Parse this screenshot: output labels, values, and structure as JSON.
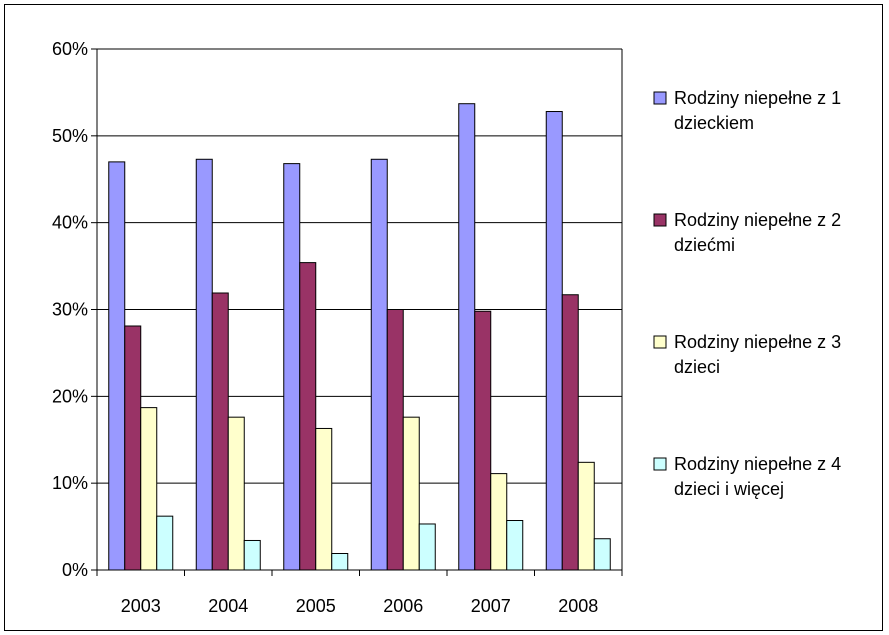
{
  "chart_data": {
    "type": "bar",
    "title": "",
    "xlabel": "",
    "ylabel": "",
    "categories": [
      "2003",
      "2004",
      "2005",
      "2006",
      "2007",
      "2008"
    ],
    "ylim": [
      0,
      60
    ],
    "yticks": [
      "0%",
      "10%",
      "20%",
      "30%",
      "40%",
      "50%",
      "60%"
    ],
    "grid": true,
    "legend_position": "right",
    "series": [
      {
        "name": "Rodziny niepełne z 1 dzieckiem",
        "legend_lines": [
          "Rodziny niepełne z 1",
          "dzieckiem"
        ],
        "color": "#9999ff",
        "values": [
          47.0,
          47.3,
          46.8,
          47.3,
          53.7,
          52.8
        ]
      },
      {
        "name": "Rodziny niepełne z 2 dziećmi",
        "legend_lines": [
          "Rodziny niepełne z 2",
          "dziećmi"
        ],
        "color": "#993366",
        "values": [
          28.1,
          31.9,
          35.4,
          30.0,
          29.8,
          31.7
        ]
      },
      {
        "name": "Rodziny niepełne z 3 dzieci",
        "legend_lines": [
          "Rodziny niepełne z 3",
          "dzieci"
        ],
        "color": "#ffffcc",
        "values": [
          18.7,
          17.6,
          16.3,
          17.6,
          11.1,
          12.4
        ]
      },
      {
        "name": "Rodziny niepełne z 4 dzieci i więcej",
        "legend_lines": [
          "Rodziny niepełne z 4",
          "dzieci i więcej"
        ],
        "color": "#ccffff",
        "values": [
          6.2,
          3.4,
          1.9,
          5.3,
          5.7,
          3.6
        ]
      }
    ]
  }
}
